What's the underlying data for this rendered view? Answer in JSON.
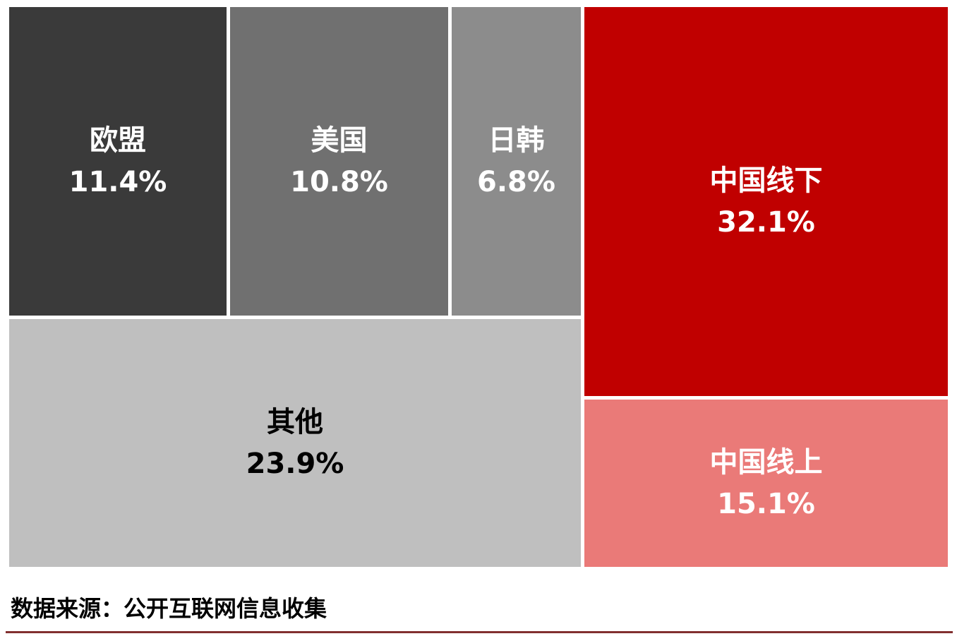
{
  "chart_data": {
    "type": "treemap",
    "title": "",
    "legend": "none",
    "unit": "%",
    "items": [
      {
        "label": "欧盟",
        "value": 11.4,
        "display": "11.4%",
        "color": "#3a3a3a",
        "text_color": "#ffffff"
      },
      {
        "label": "美国",
        "value": 10.8,
        "display": "10.8%",
        "color": "#707070",
        "text_color": "#ffffff"
      },
      {
        "label": "日韩",
        "value": 6.8,
        "display": "6.8%",
        "color": "#8c8c8c",
        "text_color": "#ffffff"
      },
      {
        "label": "其他",
        "value": 23.9,
        "display": "23.9%",
        "color": "#bfbfbf",
        "text_color": "#000000"
      },
      {
        "label": "中国线下",
        "value": 32.1,
        "display": "32.1%",
        "color": "#c00000",
        "text_color": "#ffffff"
      },
      {
        "label": "中国线上",
        "value": 15.1,
        "display": "15.1%",
        "color": "#ea7a78",
        "text_color": "#ffffff"
      }
    ]
  },
  "footer": {
    "source_text": "数据来源：公开互联网信息收集",
    "rule_color": "#823030"
  }
}
